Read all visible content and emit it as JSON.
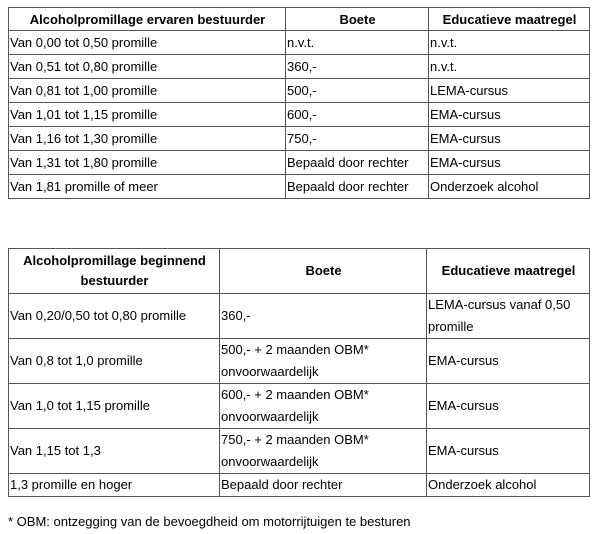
{
  "table_experienced": {
    "headers": [
      "Alcoholpromillage ervaren bestuurder",
      "Boete",
      "Educatieve maatregel"
    ],
    "rows": [
      [
        "Van 0,00 tot 0,50 promille",
        "n.v.t.",
        "n.v.t."
      ],
      [
        "Van 0,51 tot 0,80 promille",
        "360,-",
        "n.v.t."
      ],
      [
        "Van 0,81 tot 1,00 promille",
        "500,-",
        "LEMA-cursus"
      ],
      [
        "Van 1,01 tot 1,15 promille",
        "600,-",
        "EMA-cursus"
      ],
      [
        "Van 1,16 tot 1,30 promille",
        "750,-",
        "EMA-cursus"
      ],
      [
        "Van 1,31 tot 1,80 promille",
        "Bepaald door rechter",
        "EMA-cursus"
      ],
      [
        "Van 1,81 promille of meer",
        "Bepaald door rechter",
        "Onderzoek alcohol"
      ]
    ]
  },
  "table_beginner": {
    "headers": [
      "Alcoholpromillage beginnend bestuurder",
      "Boete",
      "Educatieve maatregel"
    ],
    "rows": [
      [
        "Van 0,20/0,50 tot 0,80 promille",
        "360,-",
        "LEMA-cursus vanaf 0,50 promille"
      ],
      [
        "Van 0,8 tot 1,0 promille",
        "500,- + 2 maanden OBM* onvoorwaardelijk",
        "EMA-cursus"
      ],
      [
        "Van 1,0 tot 1,15 promille",
        "600,- + 2 maanden OBM* onvoorwaardelijk",
        "EMA-cursus"
      ],
      [
        "Van 1,15 tot 1,3",
        "750,- + 2 maanden OBM* onvoorwaardelijk",
        "EMA-cursus"
      ],
      [
        "1,3 promille en hoger",
        "Bepaald door rechter",
        "Onderzoek alcohol"
      ]
    ]
  },
  "footnote": "* OBM: ontzegging van de bevoegdheid om motorrijtuigen te besturen"
}
